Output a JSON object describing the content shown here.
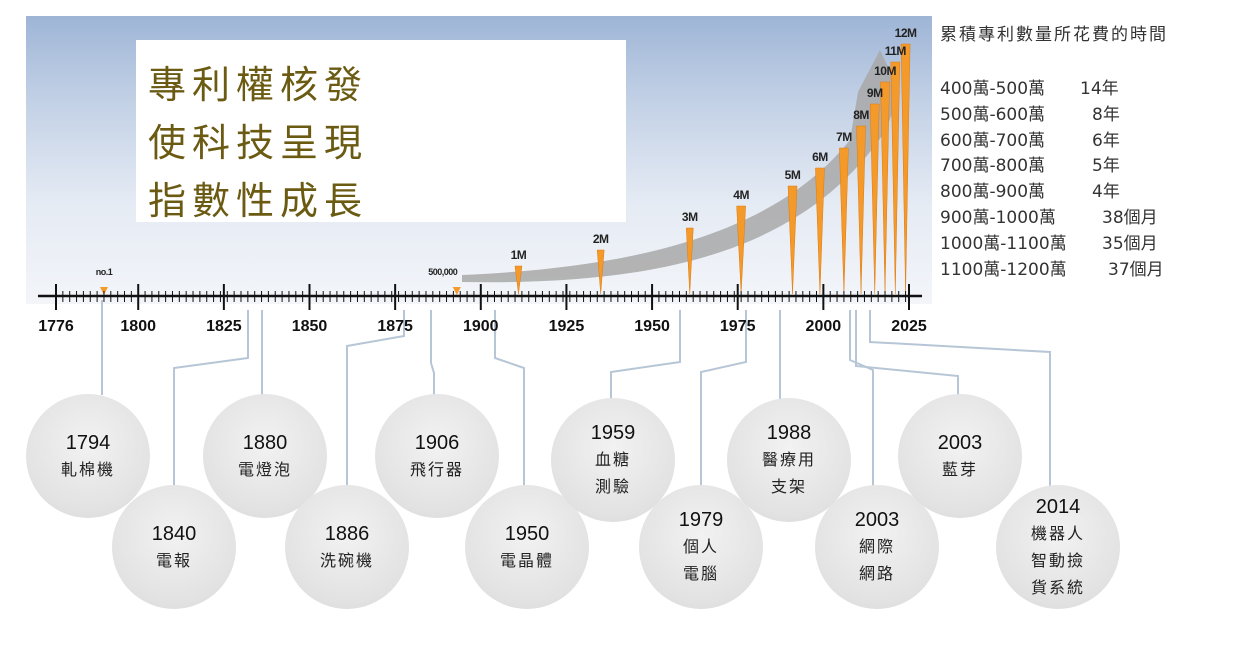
{
  "title": {
    "lines": [
      "專利權核發",
      "使科技呈現",
      "指數性成長"
    ]
  },
  "axis": {
    "years": [
      "1776",
      "1800",
      "1825",
      "1850",
      "1875",
      "1900",
      "1925",
      "1950",
      "1975",
      "2000",
      "2025"
    ]
  },
  "milestones": [
    {
      "label": "no.1",
      "year": 1790
    },
    {
      "label": "500,000",
      "year": 1893
    },
    {
      "label": "1M",
      "year": 1911
    },
    {
      "label": "2M",
      "year": 1935
    },
    {
      "label": "3M",
      "year": 1961
    },
    {
      "label": "4M",
      "year": 1976
    },
    {
      "label": "5M",
      "year": 1991
    },
    {
      "label": "6M",
      "year": 1999
    },
    {
      "label": "7M",
      "year": 2006
    },
    {
      "label": "8M",
      "year": 2011
    },
    {
      "label": "9M",
      "year": 2015
    },
    {
      "label": "10M",
      "year": 2018
    },
    {
      "label": "11M",
      "year": 2021
    },
    {
      "label": "12M",
      "year": 2024
    }
  ],
  "durations": {
    "title": "累積專利數量所花費的時間",
    "rows": [
      {
        "range": "400萬-500萬",
        "duration": "14年"
      },
      {
        "range": "500萬-600萬",
        "duration": "8年"
      },
      {
        "range": "600萬-700萬",
        "duration": "6年"
      },
      {
        "range": "700萬-800萬",
        "duration": "5年"
      },
      {
        "range": "800萬-900萬",
        "duration": "4年"
      },
      {
        "range": "900萬-1000萬",
        "duration": "38個月"
      },
      {
        "range": "1000萬-1100萬",
        "duration": "35個月"
      },
      {
        "range": "1100萬-1200萬",
        "duration": "37個月"
      }
    ]
  },
  "inventions": [
    {
      "year": "1794",
      "name": [
        "軋棉機"
      ]
    },
    {
      "year": "1840",
      "name": [
        "電報"
      ]
    },
    {
      "year": "1880",
      "name": [
        "電燈泡"
      ]
    },
    {
      "year": "1886",
      "name": [
        "洗碗機"
      ]
    },
    {
      "year": "1906",
      "name": [
        "飛行器"
      ]
    },
    {
      "year": "1950",
      "name": [
        "電晶體"
      ]
    },
    {
      "year": "1959",
      "name": [
        "血糖",
        "測驗"
      ]
    },
    {
      "year": "1979",
      "name": [
        "個人",
        "電腦"
      ]
    },
    {
      "year": "1988",
      "name": [
        "醫療用",
        "支架"
      ]
    },
    {
      "year": "2003",
      "name": [
        "網際",
        "網路"
      ]
    },
    {
      "year": "2003",
      "name": [
        "藍芽"
      ]
    },
    {
      "year": "2014",
      "name": [
        "機器人",
        "智動撿",
        "貨系統"
      ]
    }
  ],
  "colors": {
    "spike": "#f39a2b",
    "spike_dark": "#e07a10",
    "arrow": "#a8a8a8",
    "axis": "#111111",
    "connector": "#b7c6d6",
    "bubble": "#e3e3e3"
  }
}
